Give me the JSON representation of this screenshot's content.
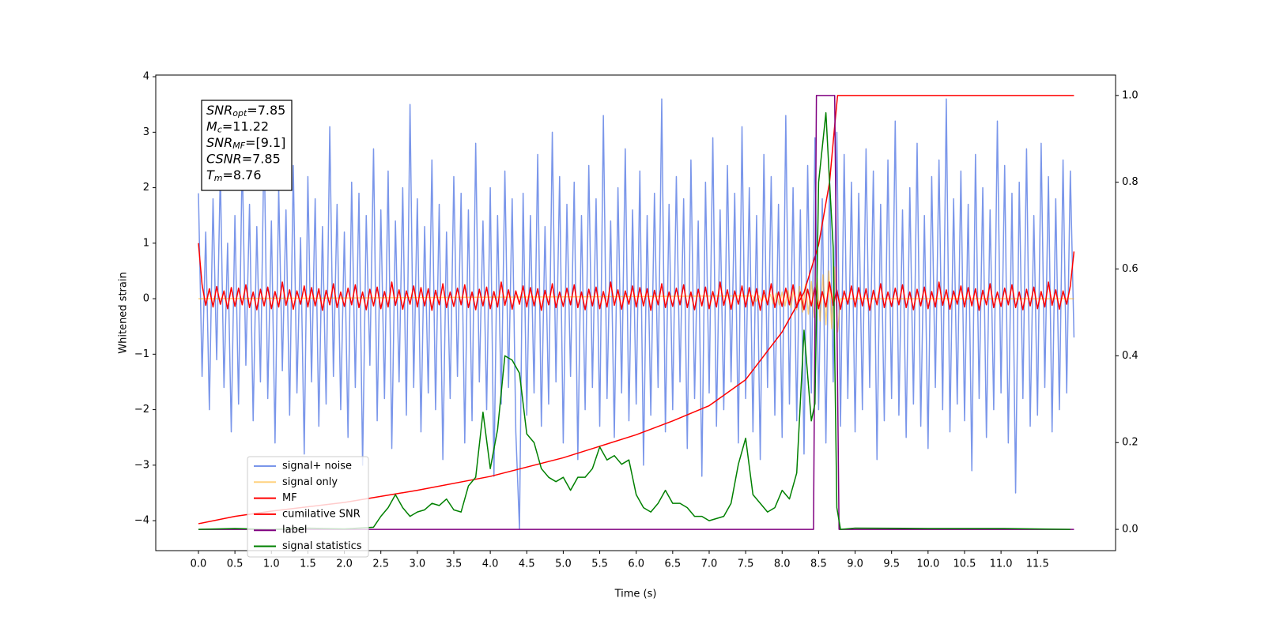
{
  "chart_data": {
    "type": "line",
    "xlabel": "Time (s)",
    "ylabel": "Whitened strain",
    "xlim": [
      -0.585,
      12.57
    ],
    "ylim": [
      -4.54,
      4.03
    ],
    "y2lim": [
      -0.049,
      1.047
    ],
    "xticks": [
      {
        "value": 0,
        "label": "0.0"
      },
      0.5,
      {
        "value": 1,
        "label": "1.0"
      },
      1.5,
      {
        "value": 2,
        "label": "2.0"
      },
      2.5,
      {
        "value": 3,
        "label": "3.0"
      },
      3.5,
      {
        "value": 4,
        "label": "4.0"
      },
      4.5,
      {
        "value": 5,
        "label": "5.0"
      },
      5.5,
      {
        "value": 6,
        "label": "6.0"
      },
      6.5,
      {
        "value": 7,
        "label": "7.0"
      },
      7.5,
      {
        "value": 8,
        "label": "8.0"
      },
      8.5,
      {
        "value": 9,
        "label": "9.0"
      },
      9.5,
      {
        "value": 10,
        "label": "10.0"
      },
      10.5,
      {
        "value": 11,
        "label": "11.0"
      },
      11.5
    ],
    "yticks": [
      {
        "value": -4,
        "label": "−4"
      },
      {
        "value": -3,
        "label": "−3"
      },
      {
        "value": -2,
        "label": "−2"
      },
      {
        "value": -1,
        "label": "−1"
      },
      0,
      1,
      2,
      3,
      4
    ],
    "y2ticks": [
      {
        "value": 0,
        "label": "0.0"
      },
      0.2,
      0.4,
      0.6,
      0.8,
      {
        "value": 1,
        "label": "1.0"
      }
    ],
    "legend": "lower left",
    "annotations": [
      {
        "var": "SNR",
        "sub": "opt",
        "text": "=7.85"
      },
      {
        "var": "M",
        "sub": "c",
        "text": "=11.22"
      },
      {
        "var": "SNR",
        "sub": "MF",
        "text": "=[9.1]"
      },
      {
        "var": "CSNR",
        "text": "=7.85"
      },
      {
        "var": "T",
        "sub": "m",
        "text": "=8.76"
      }
    ],
    "x": [
      0,
      0.05,
      0.1,
      0.15,
      0.2,
      0.25,
      0.3,
      0.35,
      0.4,
      0.45,
      0.5,
      0.55,
      0.6,
      0.65,
      0.7,
      0.75,
      0.8,
      0.85,
      0.9,
      0.95,
      1,
      1.05,
      1.1,
      1.15,
      1.2,
      1.25,
      1.3,
      1.35,
      1.4,
      1.45,
      1.5,
      1.55,
      1.6,
      1.65,
      1.7,
      1.75,
      1.8,
      1.85,
      1.9,
      1.95,
      2,
      2.05,
      2.1,
      2.15,
      2.2,
      2.25,
      2.3,
      2.35,
      2.4,
      2.45,
      2.5,
      2.55,
      2.6,
      2.65,
      2.7,
      2.75,
      2.8,
      2.85,
      2.9,
      2.95,
      3,
      3.05,
      3.1,
      3.15,
      3.2,
      3.25,
      3.3,
      3.35,
      3.4,
      3.45,
      3.5,
      3.55,
      3.6,
      3.65,
      3.7,
      3.75,
      3.8,
      3.85,
      3.9,
      3.95,
      4,
      4.05,
      4.1,
      4.15,
      4.2,
      4.25,
      4.3,
      4.35,
      4.4,
      4.45,
      4.5,
      4.55,
      4.6,
      4.65,
      4.7,
      4.75,
      4.8,
      4.85,
      4.9,
      4.95,
      5,
      5.05,
      5.1,
      5.15,
      5.2,
      5.25,
      5.3,
      5.35,
      5.4,
      5.45,
      5.5,
      5.55,
      5.6,
      5.65,
      5.7,
      5.75,
      5.8,
      5.85,
      5.9,
      5.95,
      6,
      6.05,
      6.1,
      6.15,
      6.2,
      6.25,
      6.3,
      6.35,
      6.4,
      6.45,
      6.5,
      6.55,
      6.6,
      6.65,
      6.7,
      6.75,
      6.8,
      6.85,
      6.9,
      6.95,
      7,
      7.05,
      7.1,
      7.15,
      7.2,
      7.25,
      7.3,
      7.35,
      7.4,
      7.45,
      7.5,
      7.55,
      7.6,
      7.65,
      7.7,
      7.75,
      7.8,
      7.85,
      7.9,
      7.95,
      8,
      8.05,
      8.1,
      8.15,
      8.2,
      8.25,
      8.3,
      8.35,
      8.4,
      8.45,
      8.5,
      8.55,
      8.6,
      8.65,
      8.7,
      8.75,
      8.8,
      8.85,
      8.9,
      8.95,
      9,
      9.05,
      9.1,
      9.15,
      9.2,
      9.25,
      9.3,
      9.35,
      9.4,
      9.45,
      9.5,
      9.55,
      9.6,
      9.65,
      9.7,
      9.75,
      9.8,
      9.85,
      9.9,
      9.95,
      10,
      10.05,
      10.1,
      10.15,
      10.2,
      10.25,
      10.3,
      10.35,
      10.4,
      10.45,
      10.5,
      10.55,
      10.6,
      10.65,
      10.7,
      10.75,
      10.8,
      10.85,
      10.9,
      10.95,
      11,
      11.05,
      11.1,
      11.15,
      11.2,
      11.25,
      11.3,
      11.35,
      11.4,
      11.45,
      11.5,
      11.55,
      11.6,
      11.65,
      11.7,
      11.75,
      11.8,
      11.85,
      11.9,
      11.95,
      12
    ],
    "series": [
      {
        "name": "signal+ noise",
        "color": "royalblue",
        "opacity": 0.7,
        "values": [
          1.9,
          -1.4,
          1.2,
          -2.0,
          1.8,
          -1.1,
          2.3,
          -1.6,
          1.0,
          -2.4,
          1.5,
          -1.9,
          2.6,
          -1.2,
          1.7,
          -2.2,
          1.3,
          -1.5,
          2.9,
          -1.8,
          1.4,
          -2.6,
          2.0,
          -1.3,
          1.6,
          -2.1,
          2.4,
          -1.7,
          1.1,
          -2.8,
          2.2,
          -1.5,
          1.8,
          -2.3,
          1.3,
          -1.9,
          3.1,
          -1.4,
          1.7,
          -2.0,
          1.2,
          -2.5,
          2.1,
          -1.6,
          1.9,
          -3.0,
          1.5,
          -1.2,
          2.7,
          -2.2,
          1.6,
          -1.8,
          2.3,
          -2.7,
          1.4,
          -1.5,
          2.0,
          -2.1,
          3.5,
          -1.6,
          1.8,
          -2.4,
          1.3,
          -1.7,
          2.5,
          -2.0,
          1.7,
          -2.9,
          1.2,
          -1.8,
          2.2,
          -1.4,
          1.9,
          -2.6,
          1.6,
          -2.2,
          2.8,
          -1.5,
          1.4,
          -2.0,
          2.0,
          -3.2,
          1.5,
          -1.9,
          2.3,
          -1.6,
          1.8,
          -2.4,
          -4.15,
          1.9,
          -2.1,
          1.5,
          -1.7,
          2.6,
          -2.3,
          1.3,
          -1.9,
          3.0,
          -1.5,
          2.2,
          -2.6,
          1.7,
          -1.4,
          2.1,
          -2.9,
          1.5,
          -2.0,
          2.4,
          -1.6,
          1.8,
          -2.3,
          3.3,
          -1.8,
          1.4,
          -2.5,
          2.0,
          -1.7,
          2.7,
          -2.2,
          1.6,
          -1.9,
          2.3,
          -3.0,
          1.5,
          -2.1,
          1.9,
          -1.6,
          3.6,
          -2.4,
          1.7,
          -2.0,
          2.2,
          -1.5,
          1.8,
          -2.7,
          2.5,
          -1.8,
          1.4,
          -3.2,
          2.1,
          -1.7,
          2.9,
          -2.3,
          1.6,
          -2.0,
          2.4,
          -1.5,
          1.9,
          -2.6,
          3.1,
          -1.8,
          2.0,
          -2.4,
          1.5,
          -2.9,
          2.6,
          -1.6,
          2.2,
          -2.1,
          1.7,
          -2.5,
          3.3,
          -1.9,
          2.0,
          -2.2,
          1.6,
          -2.8,
          2.4,
          -1.7,
          2.9,
          -2.0,
          1.8,
          -2.6,
          2.2,
          -1.5,
          3.0,
          -2.3,
          2.6,
          -1.8,
          2.1,
          -2.4,
          1.9,
          -2.0,
          2.7,
          -1.6,
          2.3,
          -2.9,
          1.7,
          -2.2,
          2.5,
          -1.8,
          3.2,
          -2.1,
          1.6,
          -2.5,
          2.0,
          -1.9,
          2.8,
          -2.3,
          1.5,
          -2.7,
          2.2,
          -1.6,
          2.5,
          -2.0,
          3.6,
          -2.4,
          1.8,
          -1.9,
          2.3,
          -2.2,
          1.7,
          -3.1,
          2.6,
          -1.8,
          2.0,
          -2.5,
          1.6,
          -2.0,
          3.2,
          -1.7,
          2.4,
          -2.6,
          1.9,
          -3.5,
          2.1,
          -1.8,
          2.7,
          -2.3,
          1.5,
          -2.1,
          2.8,
          -1.6,
          2.2,
          -2.4,
          1.8,
          -2.0,
          2.5,
          -1.7,
          2.3,
          -0.7
        ]
      },
      {
        "name": "signal only",
        "color": "orange",
        "opacity": 0.5,
        "x": [
          0,
          7.6,
          7.64,
          7.68,
          7.72,
          7.76,
          7.8,
          7.84,
          7.88,
          7.92,
          7.96,
          8,
          8.04,
          8.08,
          8.12,
          8.16,
          8.2,
          8.24,
          8.28,
          8.32,
          8.36,
          8.4,
          8.44,
          8.48,
          8.52,
          8.56,
          8.6,
          8.64,
          8.68,
          8.72,
          8.76,
          8.8,
          12
        ],
        "values": [
          0,
          0.05,
          -0.05,
          0.06,
          -0.06,
          0.07,
          -0.07,
          0.08,
          -0.09,
          0.1,
          -0.11,
          0.12,
          -0.13,
          0.15,
          -0.16,
          0.18,
          -0.2,
          0.22,
          -0.24,
          0.26,
          -0.28,
          0.31,
          -0.34,
          0.37,
          -0.4,
          0.43,
          -0.47,
          0.5,
          -0.54,
          0.57,
          -0.6,
          0,
          0
        ]
      },
      {
        "name": "MF",
        "color": "red",
        "opacity": 1,
        "values": [
          1.0,
          0.25,
          -0.12,
          0.18,
          -0.15,
          0.22,
          -0.1,
          0.14,
          -0.18,
          0.2,
          -0.14,
          0.19,
          -0.11,
          0.25,
          -0.16,
          0.12,
          -0.2,
          0.17,
          -0.13,
          0.21,
          -0.18,
          0.13,
          -0.15,
          0.3,
          -0.12,
          0.16,
          -0.19,
          0.14,
          -0.1,
          0.23,
          -0.15,
          0.2,
          -0.13,
          0.18,
          -0.21,
          0.15,
          -0.11,
          0.27,
          -0.16,
          0.12,
          -0.14,
          0.19,
          -0.11,
          0.25,
          -0.16,
          0.12,
          -0.2,
          0.17,
          -0.13,
          0.21,
          -0.18,
          0.13,
          -0.15,
          0.3,
          -0.12,
          0.16,
          -0.19,
          0.14,
          -0.1,
          0.23,
          -0.15,
          0.2,
          -0.13,
          0.18,
          -0.21,
          0.15,
          -0.11,
          0.27,
          -0.16,
          0.12,
          -0.14,
          0.19,
          -0.11,
          0.25,
          -0.16,
          0.12,
          -0.2,
          0.17,
          -0.13,
          0.21,
          -0.18,
          0.13,
          -0.15,
          0.3,
          -0.12,
          0.16,
          -0.19,
          0.14,
          -0.1,
          0.23,
          -0.15,
          0.2,
          -0.13,
          0.18,
          -0.21,
          0.15,
          -0.11,
          0.27,
          -0.16,
          0.12,
          -0.14,
          0.19,
          -0.11,
          0.25,
          -0.16,
          0.12,
          -0.2,
          0.17,
          -0.13,
          0.21,
          -0.18,
          0.13,
          -0.15,
          0.3,
          -0.12,
          0.16,
          -0.19,
          0.14,
          -0.1,
          0.23,
          -0.15,
          0.2,
          -0.13,
          0.18,
          -0.21,
          0.15,
          -0.11,
          0.27,
          -0.16,
          0.12,
          -0.14,
          0.19,
          -0.11,
          0.25,
          -0.16,
          0.12,
          -0.2,
          0.17,
          -0.13,
          0.21,
          -0.18,
          0.13,
          -0.15,
          0.3,
          -0.12,
          0.16,
          -0.19,
          0.14,
          -0.1,
          0.23,
          -0.15,
          0.2,
          -0.13,
          0.18,
          -0.21,
          0.15,
          -0.11,
          0.27,
          -0.16,
          0.12,
          -0.14,
          0.19,
          -0.11,
          0.25,
          -0.16,
          0.12,
          -0.2,
          0.17,
          -0.13,
          0.21,
          -0.18,
          0.13,
          -0.15,
          0.3,
          -0.12,
          0.16,
          -0.19,
          0.14,
          -0.1,
          0.23,
          -0.15,
          0.2,
          -0.13,
          0.18,
          -0.21,
          0.15,
          -0.11,
          0.27,
          -0.16,
          0.12,
          -0.14,
          0.19,
          -0.11,
          0.25,
          -0.16,
          0.12,
          -0.2,
          0.17,
          -0.13,
          0.21,
          -0.18,
          0.13,
          -0.15,
          0.3,
          -0.12,
          0.16,
          -0.19,
          0.14,
          -0.1,
          0.23,
          -0.15,
          0.2,
          -0.13,
          0.18,
          -0.21,
          0.15,
          -0.11,
          0.27,
          -0.16,
          0.12,
          -0.14,
          0.19,
          -0.11,
          0.25,
          -0.16,
          0.12,
          -0.2,
          0.17,
          -0.13,
          0.21,
          -0.18,
          0.13,
          -0.15,
          0.3,
          -0.12,
          0.16,
          -0.19,
          0.14,
          -0.1,
          0.23,
          0.85
        ]
      },
      {
        "name": "cumilative SNR",
        "color": "red",
        "opacity": 1,
        "axis": "y2",
        "x": [
          0,
          0.5,
          1,
          2,
          3,
          4,
          5,
          6,
          6.5,
          7,
          7.5,
          8,
          8.3,
          8.5,
          8.65,
          8.72,
          8.76,
          12
        ],
        "values": [
          0.013,
          0.03,
          0.042,
          0.062,
          0.09,
          0.122,
          0.165,
          0.218,
          0.25,
          0.285,
          0.345,
          0.455,
          0.546,
          0.656,
          0.8,
          0.93,
          1.0,
          1.0
        ]
      },
      {
        "name": "label",
        "color": "purple",
        "opacity": 1,
        "axis": "y2",
        "x": [
          0,
          8.43,
          8.47,
          8.72,
          8.78,
          12
        ],
        "values": [
          0,
          0,
          1,
          1,
          0,
          0
        ]
      },
      {
        "name": "signal statistics",
        "color": "green",
        "opacity": 1,
        "axis": "y2",
        "x": [
          0,
          0.5,
          1,
          1.5,
          2,
          2.4,
          2.5,
          2.6,
          2.7,
          2.8,
          2.9,
          3,
          3.1,
          3.2,
          3.3,
          3.4,
          3.5,
          3.6,
          3.7,
          3.8,
          3.9,
          4,
          4.1,
          4.2,
          4.3,
          4.4,
          4.5,
          4.6,
          4.7,
          4.8,
          4.9,
          5,
          5.1,
          5.2,
          5.3,
          5.4,
          5.5,
          5.6,
          5.7,
          5.8,
          5.9,
          6,
          6.1,
          6.2,
          6.3,
          6.4,
          6.5,
          6.6,
          6.7,
          6.8,
          6.9,
          7,
          7.2,
          7.3,
          7.4,
          7.5,
          7.6,
          7.7,
          7.8,
          7.9,
          8,
          8.1,
          8.2,
          8.3,
          8.4,
          8.45,
          8.5,
          8.6,
          8.65,
          8.7,
          8.75,
          8.8,
          9,
          10,
          11,
          11.95
        ],
        "values": [
          0,
          0.002,
          0,
          0.003,
          0.001,
          0.005,
          0.03,
          0.05,
          0.08,
          0.05,
          0.03,
          0.04,
          0.045,
          0.06,
          0.055,
          0.07,
          0.045,
          0.04,
          0.1,
          0.12,
          0.27,
          0.14,
          0.23,
          0.4,
          0.39,
          0.36,
          0.22,
          0.2,
          0.14,
          0.12,
          0.11,
          0.12,
          0.09,
          0.12,
          0.12,
          0.14,
          0.19,
          0.16,
          0.17,
          0.15,
          0.16,
          0.08,
          0.05,
          0.04,
          0.06,
          0.09,
          0.06,
          0.06,
          0.05,
          0.03,
          0.03,
          0.02,
          0.03,
          0.06,
          0.15,
          0.21,
          0.08,
          0.06,
          0.04,
          0.05,
          0.09,
          0.07,
          0.13,
          0.459,
          0.25,
          0.29,
          0.8,
          0.96,
          0.8,
          0.65,
          0.05,
          0,
          0.003,
          0.002,
          0.002,
          0
        ]
      }
    ]
  }
}
